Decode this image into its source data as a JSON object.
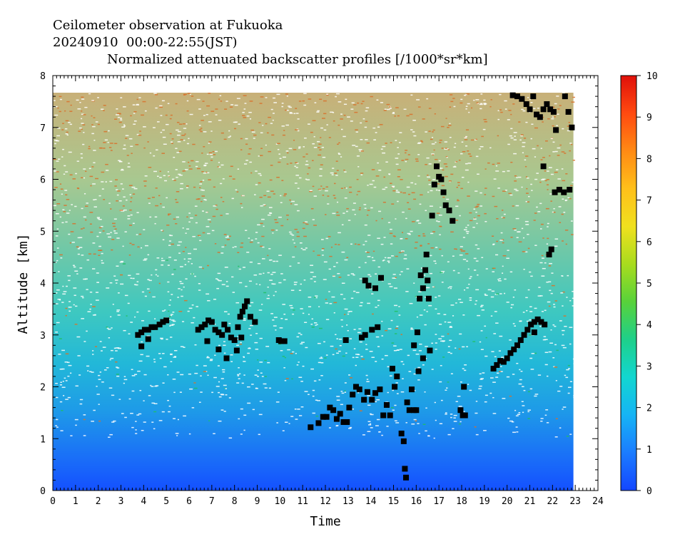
{
  "header": {
    "line1": "Ceilometer observation at Fukuoka",
    "line2": "20240910  00:00-22:55(JST)",
    "line3": "Normalized attenuated backscatter profiles [/1000*sr*km]"
  },
  "chart_data": {
    "type": "heatmap",
    "title": "Normalized attenuated backscatter profiles [/1000*sr*km]",
    "xlabel": "Time",
    "ylabel": "Altitude [km]",
    "xlim": [
      0,
      24
    ],
    "ylim": [
      0,
      8
    ],
    "data_end_time": 22.92,
    "data_top_altitude": 7.67,
    "x_ticks": [
      "0",
      "1",
      "2",
      "3",
      "4",
      "5",
      "6",
      "7",
      "8",
      "9",
      "10",
      "11",
      "12",
      "13",
      "14",
      "15",
      "16",
      "17",
      "18",
      "19",
      "20",
      "21",
      "22",
      "23",
      "24"
    ],
    "y_ticks": [
      "0",
      "1",
      "2",
      "3",
      "4",
      "5",
      "6",
      "7",
      "8"
    ],
    "colorbar": {
      "range": [
        0,
        10
      ],
      "ticks": [
        "0",
        "1",
        "2",
        "3",
        "4",
        "5",
        "6",
        "7",
        "8",
        "9",
        "10"
      ],
      "colors": [
        "#1446ff",
        "#1b7cff",
        "#16b4f5",
        "#12d6d0",
        "#1ed08a",
        "#58d23a",
        "#a8dc1e",
        "#f0e01e",
        "#ffc01a",
        "#ff8a14",
        "#ff4a10",
        "#e0100a"
      ]
    },
    "cloud_base_points": [
      [
        3.75,
        3.0
      ],
      [
        3.9,
        3.05
      ],
      [
        4.05,
        3.1
      ],
      [
        4.2,
        3.1
      ],
      [
        4.35,
        3.15
      ],
      [
        4.5,
        3.15
      ],
      [
        4.7,
        3.2
      ],
      [
        4.85,
        3.25
      ],
      [
        5.0,
        3.28
      ],
      [
        3.9,
        2.78
      ],
      [
        4.2,
        2.92
      ],
      [
        6.4,
        3.1
      ],
      [
        6.55,
        3.15
      ],
      [
        6.7,
        3.2
      ],
      [
        6.85,
        3.28
      ],
      [
        7.0,
        3.25
      ],
      [
        7.15,
        3.1
      ],
      [
        7.3,
        3.05
      ],
      [
        7.45,
        3.0
      ],
      [
        7.55,
        3.2
      ],
      [
        7.7,
        3.1
      ],
      [
        7.85,
        2.95
      ],
      [
        8.0,
        2.9
      ],
      [
        8.15,
        3.15
      ],
      [
        8.25,
        3.35
      ],
      [
        8.35,
        3.45
      ],
      [
        8.45,
        3.55
      ],
      [
        8.55,
        3.65
      ],
      [
        8.7,
        3.35
      ],
      [
        8.9,
        3.25
      ],
      [
        6.8,
        2.88
      ],
      [
        7.3,
        2.72
      ],
      [
        7.65,
        2.55
      ],
      [
        8.1,
        2.7
      ],
      [
        8.3,
        2.95
      ],
      [
        9.95,
        2.9
      ],
      [
        10.05,
        2.88
      ],
      [
        10.2,
        2.88
      ],
      [
        11.35,
        1.22
      ],
      [
        11.7,
        1.3
      ],
      [
        11.9,
        1.42
      ],
      [
        12.05,
        1.42
      ],
      [
        12.2,
        1.6
      ],
      [
        12.35,
        1.55
      ],
      [
        12.5,
        1.38
      ],
      [
        12.65,
        1.48
      ],
      [
        12.8,
        1.32
      ],
      [
        12.95,
        1.32
      ],
      [
        13.05,
        1.6
      ],
      [
        13.2,
        1.85
      ],
      [
        13.35,
        2.0
      ],
      [
        13.5,
        1.95
      ],
      [
        13.7,
        1.75
      ],
      [
        13.85,
        1.9
      ],
      [
        14.05,
        1.75
      ],
      [
        14.2,
        1.88
      ],
      [
        14.4,
        1.95
      ],
      [
        14.55,
        1.45
      ],
      [
        14.7,
        1.65
      ],
      [
        14.85,
        1.45
      ],
      [
        12.9,
        2.9
      ],
      [
        13.6,
        2.95
      ],
      [
        13.75,
        3.0
      ],
      [
        14.05,
        3.1
      ],
      [
        14.3,
        3.15
      ],
      [
        13.75,
        4.05
      ],
      [
        13.9,
        3.95
      ],
      [
        14.2,
        3.9
      ],
      [
        14.45,
        4.1
      ],
      [
        14.95,
        2.35
      ],
      [
        15.05,
        2.0
      ],
      [
        15.15,
        2.2
      ],
      [
        15.35,
        1.1
      ],
      [
        15.45,
        0.95
      ],
      [
        15.55,
        0.25
      ],
      [
        15.5,
        0.42
      ],
      [
        15.6,
        1.7
      ],
      [
        15.7,
        1.55
      ],
      [
        15.8,
        1.95
      ],
      [
        15.9,
        1.55
      ],
      [
        16.0,
        1.55
      ],
      [
        16.1,
        2.3
      ],
      [
        16.15,
        3.7
      ],
      [
        16.2,
        4.15
      ],
      [
        16.3,
        3.9
      ],
      [
        16.4,
        4.25
      ],
      [
        16.45,
        4.55
      ],
      [
        16.5,
        4.05
      ],
      [
        16.55,
        3.7
      ],
      [
        16.6,
        2.7
      ],
      [
        15.9,
        2.8
      ],
      [
        16.05,
        3.05
      ],
      [
        16.3,
        2.55
      ],
      [
        16.7,
        5.3
      ],
      [
        16.8,
        5.9
      ],
      [
        16.9,
        6.25
      ],
      [
        17.0,
        6.05
      ],
      [
        17.1,
        6.0
      ],
      [
        17.2,
        5.75
      ],
      [
        17.3,
        5.5
      ],
      [
        17.45,
        5.4
      ],
      [
        17.6,
        5.2
      ],
      [
        17.95,
        1.55
      ],
      [
        18.05,
        1.45
      ],
      [
        18.15,
        1.45
      ],
      [
        18.1,
        2.0
      ],
      [
        19.4,
        2.35
      ],
      [
        19.55,
        2.42
      ],
      [
        19.7,
        2.5
      ],
      [
        19.85,
        2.48
      ],
      [
        20.0,
        2.55
      ],
      [
        20.15,
        2.65
      ],
      [
        20.3,
        2.72
      ],
      [
        20.45,
        2.8
      ],
      [
        20.6,
        2.9
      ],
      [
        20.75,
        3.0
      ],
      [
        20.9,
        3.1
      ],
      [
        21.05,
        3.2
      ],
      [
        21.2,
        3.25
      ],
      [
        21.35,
        3.3
      ],
      [
        21.5,
        3.25
      ],
      [
        21.65,
        3.2
      ],
      [
        21.2,
        3.05
      ],
      [
        20.25,
        7.62
      ],
      [
        20.45,
        7.6
      ],
      [
        20.65,
        7.55
      ],
      [
        20.85,
        7.45
      ],
      [
        21.0,
        7.35
      ],
      [
        21.15,
        7.6
      ],
      [
        21.3,
        7.25
      ],
      [
        21.45,
        7.2
      ],
      [
        21.6,
        7.35
      ],
      [
        21.75,
        7.45
      ],
      [
        21.9,
        7.35
      ],
      [
        22.05,
        7.3
      ],
      [
        22.15,
        6.95
      ],
      [
        22.55,
        7.6
      ],
      [
        22.7,
        7.3
      ],
      [
        22.85,
        7.0
      ],
      [
        21.6,
        6.25
      ],
      [
        22.1,
        5.75
      ],
      [
        22.3,
        5.8
      ],
      [
        22.5,
        5.75
      ],
      [
        22.75,
        5.8
      ],
      [
        21.85,
        4.55
      ],
      [
        21.95,
        4.65
      ]
    ]
  }
}
